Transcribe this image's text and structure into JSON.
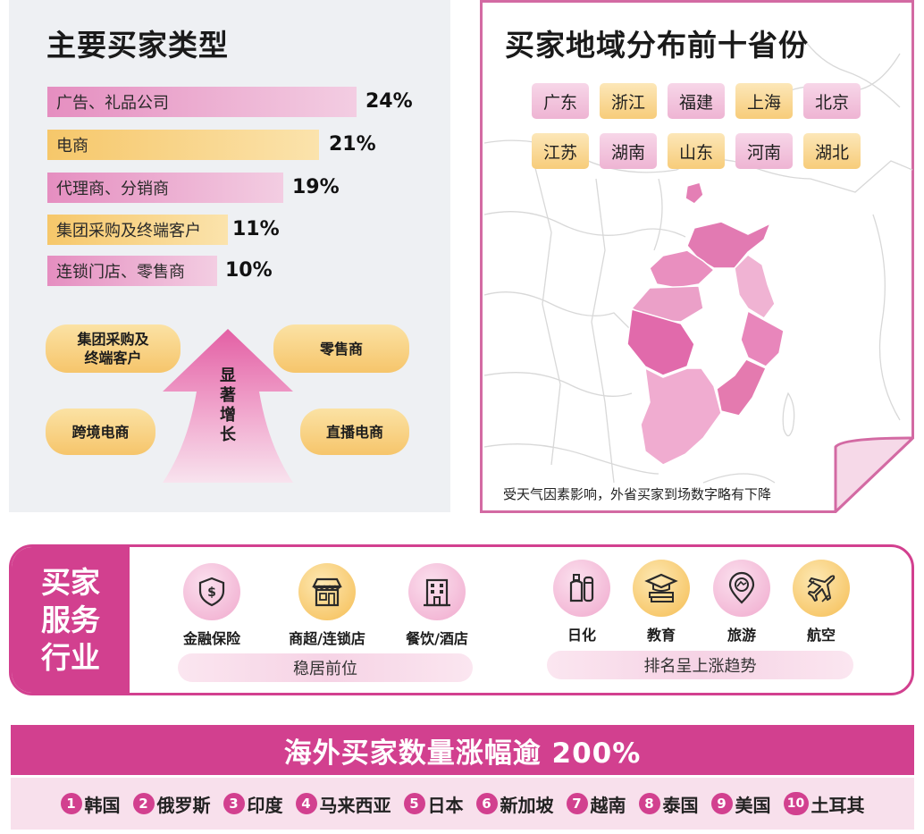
{
  "buyer_types": {
    "title": "主要买家类型",
    "bars": [
      {
        "label": "广告、礼品公司",
        "value": 24,
        "value_label": "24%",
        "color": "pink"
      },
      {
        "label": "电商",
        "value": 21,
        "value_label": "21%",
        "color": "yellow"
      },
      {
        "label": "代理商、分销商",
        "value": 19,
        "value_label": "19%",
        "color": "pink"
      },
      {
        "label": "集团采购及终端客户",
        "value": 11,
        "value_label": "11%",
        "color": "yellow"
      },
      {
        "label": "连锁门店、零售商",
        "value": 10,
        "value_label": "10%",
        "color": "pink"
      }
    ],
    "growth": {
      "arrow_text_lines": [
        "显",
        "著",
        "增",
        "长"
      ],
      "pills": [
        "集团采购及\n终端客户",
        "零售商",
        "跨境电商",
        "直播电商"
      ]
    }
  },
  "regions": {
    "title": "买家地域分布前十省份",
    "provinces": [
      {
        "name": "广东",
        "color": "pink"
      },
      {
        "name": "浙江",
        "color": "yellow"
      },
      {
        "name": "福建",
        "color": "pink"
      },
      {
        "name": "上海",
        "color": "yellow"
      },
      {
        "name": "北京",
        "color": "pink"
      },
      {
        "name": "江苏",
        "color": "yellow"
      },
      {
        "name": "湖南",
        "color": "pink"
      },
      {
        "name": "山东",
        "color": "yellow"
      },
      {
        "name": "河南",
        "color": "pink"
      },
      {
        "name": "湖北",
        "color": "yellow"
      }
    ],
    "note": "受天气因素影响，外省买家到场数字略有下降"
  },
  "services": {
    "label_lines": [
      "买家",
      "服务",
      "行业"
    ],
    "stable_group": {
      "items": [
        {
          "name": "金融保险",
          "icon": "shield-dollar-icon",
          "color": "pink"
        },
        {
          "name": "商超/连锁店",
          "icon": "storefront-icon",
          "color": "yellow"
        },
        {
          "name": "餐饮/酒店",
          "icon": "hotel-building-icon",
          "color": "pink"
        }
      ],
      "band_text": "稳居前位"
    },
    "rising_group": {
      "items": [
        {
          "name": "日化",
          "icon": "cosmetics-bottles-icon",
          "color": "pink"
        },
        {
          "name": "教育",
          "icon": "graduation-books-icon",
          "color": "yellow"
        },
        {
          "name": "旅游",
          "icon": "map-pin-icon",
          "color": "pink"
        },
        {
          "name": "航空",
          "icon": "airplane-icon",
          "color": "yellow"
        }
      ],
      "band_text": "排名呈上涨趋势"
    }
  },
  "overseas": {
    "headline": "海外买家数量涨幅逾 200%",
    "countries": [
      {
        "rank": "1",
        "name": "韩国"
      },
      {
        "rank": "2",
        "name": "俄罗斯"
      },
      {
        "rank": "3",
        "name": "印度"
      },
      {
        "rank": "4",
        "name": "马来西亚"
      },
      {
        "rank": "5",
        "name": "日本"
      },
      {
        "rank": "6",
        "name": "新加坡"
      },
      {
        "rank": "7",
        "name": "越南"
      },
      {
        "rank": "8",
        "name": "泰国"
      },
      {
        "rank": "9",
        "name": "美国"
      },
      {
        "rank": "10",
        "name": "土耳其"
      }
    ]
  },
  "colors": {
    "brand_pink": "#d2408f",
    "bar_pink": "#e58ec0",
    "bar_yellow": "#f6c76a",
    "panel_gray": "#eef0f3"
  }
}
